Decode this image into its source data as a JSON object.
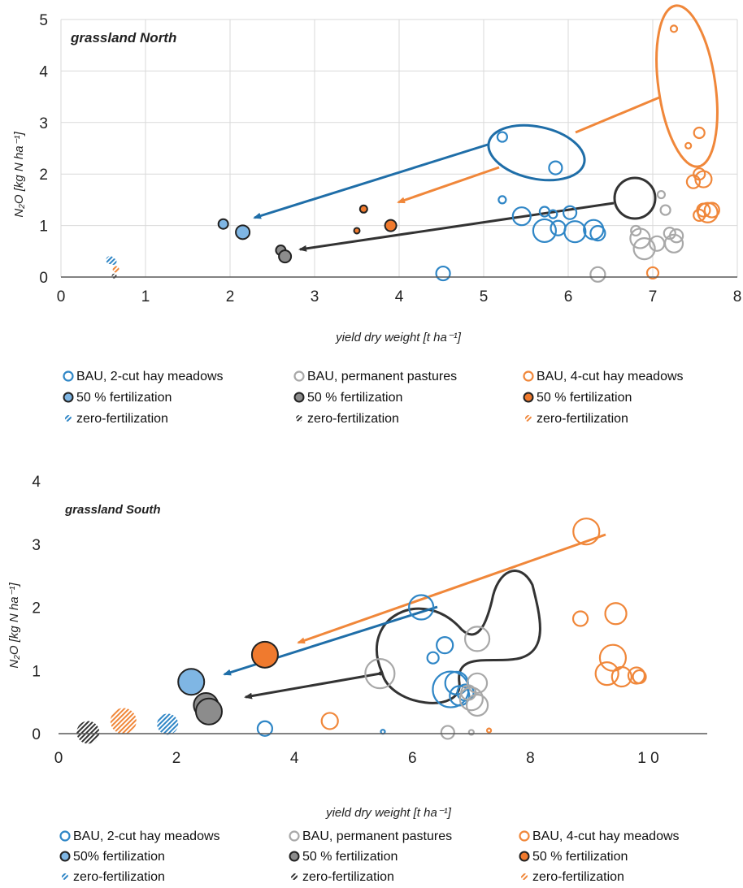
{
  "colors": {
    "blue": "#2f86c6",
    "blue_fill": "#7fb6e4",
    "grey": "#a8a8a8",
    "grey_fill": "#8c8c8c",
    "orange": "#f0873a",
    "orange_fill": "#f07a2e",
    "arrow_blue": "#1f6ea8",
    "arrow_black": "#333333",
    "grid": "#d9d9d9",
    "axis": "#595959"
  },
  "chart_data": [
    {
      "type": "scatter",
      "title": "grassland North",
      "xlabel": "yield dry weight [t ha⁻¹]",
      "ylabel": "N₂O [kg N ha⁻¹]",
      "xlim": [
        0,
        8
      ],
      "ylim": [
        0,
        5
      ],
      "xticks": [
        "0",
        "1",
        "2",
        "3",
        "4",
        "5",
        "6",
        "7",
        "8"
      ],
      "yticks": [
        "0",
        "1",
        "2",
        "3",
        "4",
        "5"
      ],
      "grid": true,
      "legend_position": "bottom",
      "legend": [
        {
          "label": "BAU, 2-cut hay meadows",
          "color": "blue",
          "style": "open"
        },
        {
          "label": "BAU, permanent pastures",
          "color": "grey",
          "style": "open"
        },
        {
          "label": "BAU, 4-cut hay meadows",
          "color": "orange",
          "style": "open"
        },
        {
          "label": "50 % fertilization",
          "color": "blue",
          "style": "filled"
        },
        {
          "label": "50 % fertilization",
          "color": "grey",
          "style": "filled"
        },
        {
          "label": "50 % fertilization",
          "color": "orange",
          "style": "filled"
        },
        {
          "label": "zero-fertilization",
          "color": "blue",
          "style": "hatched"
        },
        {
          "label": "zero-fertilization",
          "color": "grey",
          "style": "hatched"
        },
        {
          "label": "zero-fertilization",
          "color": "orange",
          "style": "hatched"
        }
      ],
      "series": [
        {
          "color": "blue",
          "style": "open",
          "points": [
            {
              "x": 5.22,
              "y": 2.72,
              "s": 6
            },
            {
              "x": 5.85,
              "y": 2.12,
              "s": 8
            },
            {
              "x": 5.22,
              "y": 1.5,
              "s": 4.5
            },
            {
              "x": 5.45,
              "y": 1.18,
              "s": 11
            },
            {
              "x": 5.72,
              "y": 1.27,
              "s": 6
            },
            {
              "x": 5.82,
              "y": 1.22,
              "s": 5
            },
            {
              "x": 6.02,
              "y": 1.25,
              "s": 8
            },
            {
              "x": 5.72,
              "y": 0.9,
              "s": 14
            },
            {
              "x": 5.88,
              "y": 0.95,
              "s": 9
            },
            {
              "x": 6.08,
              "y": 0.88,
              "s": 13
            },
            {
              "x": 6.3,
              "y": 0.92,
              "s": 12
            },
            {
              "x": 6.35,
              "y": 0.85,
              "s": 9
            },
            {
              "x": 4.52,
              "y": 0.07,
              "s": 8.5
            }
          ]
        },
        {
          "color": "grey",
          "style": "open",
          "points": [
            {
              "x": 7.1,
              "y": 1.6,
              "s": 4.5
            },
            {
              "x": 7.15,
              "y": 1.3,
              "s": 6
            },
            {
              "x": 6.8,
              "y": 0.9,
              "s": 6
            },
            {
              "x": 6.85,
              "y": 0.75,
              "s": 12
            },
            {
              "x": 6.9,
              "y": 0.55,
              "s": 13
            },
            {
              "x": 7.05,
              "y": 0.65,
              "s": 9
            },
            {
              "x": 7.2,
              "y": 0.85,
              "s": 7
            },
            {
              "x": 7.25,
              "y": 0.65,
              "s": 11
            },
            {
              "x": 7.28,
              "y": 0.8,
              "s": 8
            },
            {
              "x": 6.35,
              "y": 0.05,
              "s": 9
            }
          ]
        },
        {
          "color": "orange",
          "style": "open",
          "points": [
            {
              "x": 7.25,
              "y": 4.82,
              "s": 4
            },
            {
              "x": 7.55,
              "y": 2.8,
              "s": 6.5
            },
            {
              "x": 7.42,
              "y": 2.55,
              "s": 3.5
            },
            {
              "x": 7.55,
              "y": 2.0,
              "s": 7
            },
            {
              "x": 7.6,
              "y": 1.9,
              "s": 10
            },
            {
              "x": 7.48,
              "y": 1.85,
              "s": 8
            },
            {
              "x": 7.6,
              "y": 1.3,
              "s": 8
            },
            {
              "x": 7.65,
              "y": 1.25,
              "s": 12
            },
            {
              "x": 7.7,
              "y": 1.3,
              "s": 9
            },
            {
              "x": 7.55,
              "y": 1.2,
              "s": 7
            },
            {
              "x": 7.0,
              "y": 0.08,
              "s": 7
            }
          ]
        },
        {
          "color": "blue",
          "style": "filled",
          "points": [
            {
              "x": 1.92,
              "y": 1.03,
              "s": 6
            },
            {
              "x": 2.15,
              "y": 0.87,
              "s": 8.5
            }
          ]
        },
        {
          "color": "grey",
          "style": "filled",
          "points": [
            {
              "x": 2.6,
              "y": 0.52,
              "s": 6
            },
            {
              "x": 2.65,
              "y": 0.4,
              "s": 7.5
            }
          ]
        },
        {
          "color": "orange",
          "style": "filled",
          "points": [
            {
              "x": 3.58,
              "y": 1.32,
              "s": 4.5
            },
            {
              "x": 3.5,
              "y": 0.9,
              "s": 3.5
            },
            {
              "x": 3.9,
              "y": 1.0,
              "s": 7
            }
          ]
        },
        {
          "color": "blue",
          "style": "hatched",
          "points": [
            {
              "x": 0.58,
              "y": 0.33,
              "s": 5
            },
            {
              "x": 0.62,
              "y": 0.3,
              "s": 4
            }
          ]
        },
        {
          "color": "grey",
          "style": "hatched",
          "points": [
            {
              "x": 0.63,
              "y": 0.02,
              "s": 3
            }
          ]
        },
        {
          "color": "orange",
          "style": "hatched",
          "points": [
            {
              "x": 0.65,
              "y": 0.15,
              "s": 4
            }
          ]
        }
      ]
    },
    {
      "type": "scatter",
      "title": "grassland South",
      "xlabel": "yield dry weight [t ha⁻¹]",
      "ylabel": "N₂O [kg N ha⁻¹]",
      "xlim": [
        0,
        11
      ],
      "ylim": [
        0,
        4
      ],
      "xticks": [
        "0",
        "2",
        "4",
        "6",
        "8",
        "1 0"
      ],
      "xtick_values": [
        0,
        2,
        4,
        6,
        8,
        10
      ],
      "yticks": [
        "0",
        "1",
        "2",
        "3",
        "4"
      ],
      "grid": false,
      "legend_position": "bottom",
      "legend": [
        {
          "label": "BAU, 2-cut hay meadows",
          "color": "blue",
          "style": "open"
        },
        {
          "label": "BAU, permanent pastures",
          "color": "grey",
          "style": "open"
        },
        {
          "label": "BAU, 4-cut hay meadows",
          "color": "orange",
          "style": "open"
        },
        {
          "label": "50% fertilization",
          "color": "blue",
          "style": "filled"
        },
        {
          "label": "50 % fertilization",
          "color": "grey",
          "style": "filled"
        },
        {
          "label": "50 % fertilization",
          "color": "orange",
          "style": "filled"
        },
        {
          "label": "zero-fertilization",
          "color": "blue",
          "style": "hatched"
        },
        {
          "label": "zero-fertilization",
          "color": "grey",
          "style": "hatched"
        },
        {
          "label": "zero-fertilization",
          "color": "orange",
          "style": "hatched"
        }
      ],
      "series": [
        {
          "color": "blue",
          "style": "open",
          "points": [
            {
              "x": 6.15,
              "y": 2.0,
              "s": 15
            },
            {
              "x": 6.55,
              "y": 1.4,
              "s": 10
            },
            {
              "x": 6.35,
              "y": 1.2,
              "s": 7
            },
            {
              "x": 6.65,
              "y": 0.7,
              "s": 22
            },
            {
              "x": 6.75,
              "y": 0.8,
              "s": 14
            },
            {
              "x": 6.9,
              "y": 0.65,
              "s": 10
            },
            {
              "x": 6.8,
              "y": 0.6,
              "s": 12
            },
            {
              "x": 3.5,
              "y": 0.08,
              "s": 9
            },
            {
              "x": 5.5,
              "y": 0.03,
              "s": 2.5
            }
          ]
        },
        {
          "color": "grey",
          "style": "open",
          "points": [
            {
              "x": 7.1,
              "y": 1.5,
              "s": 15
            },
            {
              "x": 5.45,
              "y": 0.95,
              "s": 18
            },
            {
              "x": 7.1,
              "y": 0.8,
              "s": 12
            },
            {
              "x": 7.0,
              "y": 0.55,
              "s": 14
            },
            {
              "x": 7.1,
              "y": 0.45,
              "s": 13
            },
            {
              "x": 6.95,
              "y": 0.65,
              "s": 9
            },
            {
              "x": 6.6,
              "y": 0.02,
              "s": 8
            },
            {
              "x": 7.0,
              "y": 0.02,
              "s": 3
            }
          ]
        },
        {
          "color": "orange",
          "style": "open",
          "points": [
            {
              "x": 8.95,
              "y": 3.2,
              "s": 16
            },
            {
              "x": 9.45,
              "y": 1.9,
              "s": 13
            },
            {
              "x": 8.85,
              "y": 1.82,
              "s": 9
            },
            {
              "x": 9.4,
              "y": 1.2,
              "s": 16
            },
            {
              "x": 9.3,
              "y": 0.95,
              "s": 14
            },
            {
              "x": 9.55,
              "y": 0.9,
              "s": 12
            },
            {
              "x": 9.8,
              "y": 0.92,
              "s": 10
            },
            {
              "x": 9.85,
              "y": 0.9,
              "s": 8
            },
            {
              "x": 4.6,
              "y": 0.2,
              "s": 10
            },
            {
              "x": 7.3,
              "y": 0.05,
              "s": 2.5
            }
          ]
        },
        {
          "color": "blue",
          "style": "filled",
          "points": [
            {
              "x": 2.25,
              "y": 0.82,
              "s": 16
            }
          ]
        },
        {
          "color": "grey",
          "style": "filled",
          "points": [
            {
              "x": 2.5,
              "y": 0.45,
              "s": 15
            },
            {
              "x": 2.55,
              "y": 0.35,
              "s": 16
            }
          ]
        },
        {
          "color": "orange",
          "style": "filled",
          "points": [
            {
              "x": 3.5,
              "y": 1.25,
              "s": 16
            }
          ]
        },
        {
          "color": "blue",
          "style": "hatched",
          "points": [
            {
              "x": 1.85,
              "y": 0.15,
              "s": 13
            }
          ]
        },
        {
          "color": "grey",
          "style": "hatched",
          "points": [
            {
              "x": 0.5,
              "y": 0.02,
              "s": 14
            }
          ]
        },
        {
          "color": "orange",
          "style": "hatched",
          "points": [
            {
              "x": 1.1,
              "y": 0.2,
              "s": 16
            }
          ]
        }
      ],
      "annotations": "ellipses and arrows from BAU to reduced fertilization clusters"
    }
  ]
}
